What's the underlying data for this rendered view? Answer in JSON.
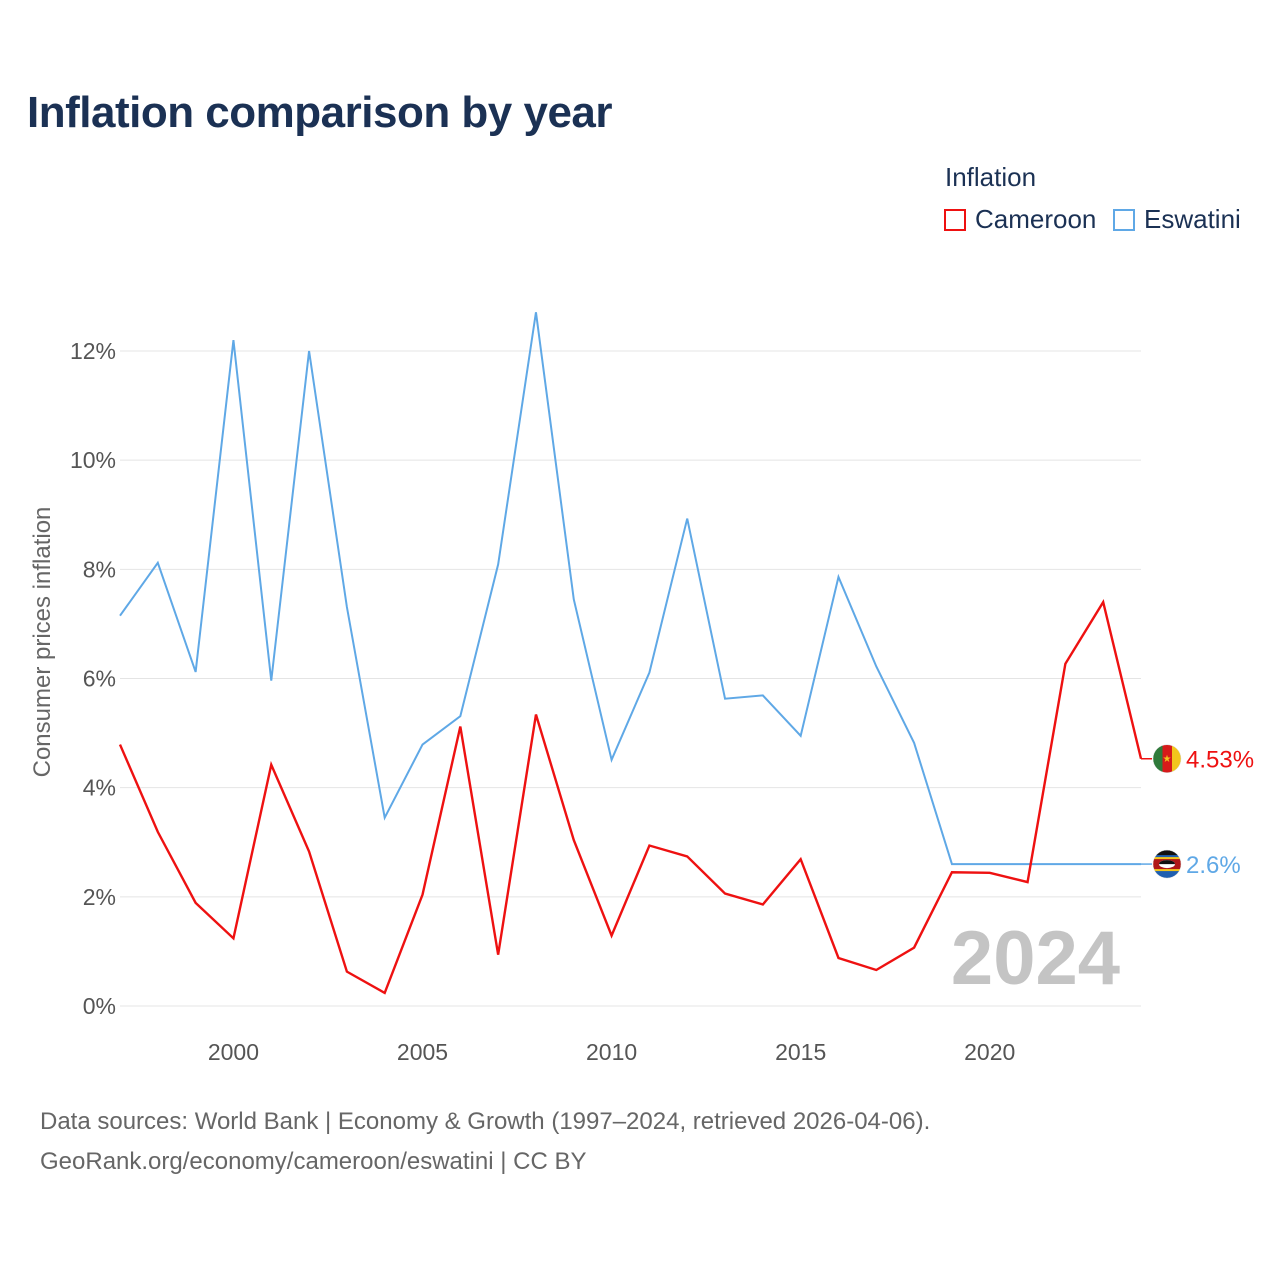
{
  "title": "Inflation comparison by year",
  "legend": {
    "title": "Inflation",
    "items": [
      {
        "label": "Cameroon",
        "color": "#ee1111"
      },
      {
        "label": "Eswatini",
        "color": "#5fa8e6"
      }
    ]
  },
  "footer": {
    "line1": "Data sources: World Bank | Economy & Growth (1997–2024, retrieved 2026-04-06).",
    "line2": "GeoRank.org/economy/cameroon/eswatini | CC BY"
  },
  "chart_data": {
    "type": "line",
    "title": "Inflation comparison by year",
    "xlabel": "",
    "ylabel": "Consumer prices inflation",
    "x": [
      1997,
      1998,
      1999,
      2000,
      2001,
      2002,
      2003,
      2004,
      2005,
      2006,
      2007,
      2008,
      2009,
      2010,
      2011,
      2012,
      2013,
      2014,
      2015,
      2016,
      2017,
      2018,
      2019,
      2020,
      2021,
      2022,
      2023,
      2024
    ],
    "xlim": [
      1997,
      2024
    ],
    "ylim": [
      0,
      13
    ],
    "xticks": [
      2000,
      2005,
      2010,
      2015,
      2020
    ],
    "yticks": [
      0,
      2,
      4,
      6,
      8,
      10,
      12
    ],
    "ytick_labels": [
      "0%",
      "2%",
      "4%",
      "6%",
      "8%",
      "10%",
      "12%"
    ],
    "grid": true,
    "legend_position": "top-right",
    "watermark": "2024",
    "series": [
      {
        "name": "Cameroon",
        "color": "#ee1111",
        "values": [
          4.79,
          3.19,
          1.89,
          1.24,
          4.42,
          2.83,
          0.63,
          0.24,
          2.04,
          5.12,
          0.94,
          5.34,
          3.04,
          1.29,
          2.94,
          2.74,
          2.06,
          1.86,
          2.69,
          0.88,
          0.66,
          1.07,
          2.45,
          2.44,
          2.27,
          6.27,
          7.4,
          4.53
        ],
        "end_label": "4.53%"
      },
      {
        "name": "Eswatini",
        "color": "#5fa8e6",
        "values": [
          7.15,
          8.12,
          6.12,
          12.2,
          5.96,
          12.0,
          7.31,
          3.45,
          4.79,
          5.31,
          8.09,
          12.71,
          7.45,
          4.51,
          6.11,
          8.93,
          5.63,
          5.69,
          4.95,
          7.86,
          6.22,
          4.82,
          2.6,
          2.6,
          2.6,
          2.6,
          2.6,
          2.6
        ],
        "end_label": "2.6%"
      }
    ]
  }
}
